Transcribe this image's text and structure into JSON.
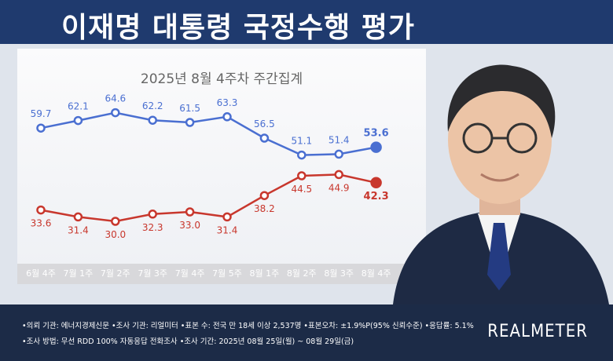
{
  "title": "이재명 대통령 국정수행 평가",
  "chart_data": {
    "type": "line",
    "title": "2025년 8월 4주차 주간집계",
    "categories": [
      "6월 4주",
      "7월 1주",
      "7월 2주",
      "7월 3주",
      "7월 4주",
      "7월 5주",
      "8월 1주",
      "8월 2주",
      "8월 3주",
      "8월 4주"
    ],
    "series": [
      {
        "values": [
          59.7,
          62.1,
          64.6,
          62.2,
          61.5,
          63.3,
          56.5,
          51.1,
          51.4,
          53.6
        ],
        "color": "#4a6fd1"
      },
      {
        "values": [
          33.6,
          31.4,
          30.0,
          32.3,
          33.0,
          31.4,
          38.2,
          44.5,
          44.9,
          42.3
        ],
        "color": "#c8372d"
      }
    ],
    "ylim": [
      25,
      70
    ],
    "grid": false,
    "legend": "none"
  },
  "footer": {
    "line1": "•의뢰 기관: 에너지경제신문 •조사 기관: 리얼미터 •표본 수: 전국 만 18세 이상 2,537명 •표본오차: ±1.9%P(95% 신뢰수준) •응답률: 5.1%",
    "line2": "•조사 방법: 무선 RDD 100% 자동응답 전화조사 •조사 기간: 2025년 08월 25일(월) ~ 08월 29일(금)",
    "brand": "REALMETER"
  }
}
